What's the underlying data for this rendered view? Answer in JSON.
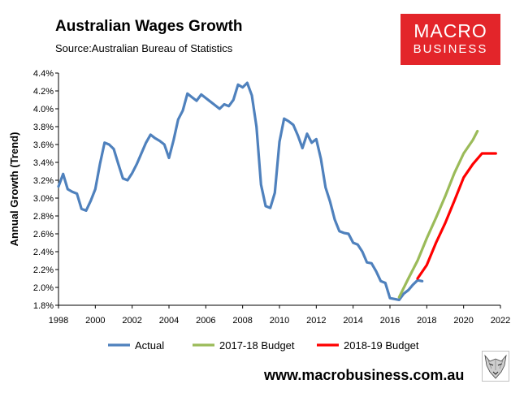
{
  "chart_data": {
    "type": "line",
    "title": "Australian Wages Growth",
    "subtitle": "Source:Australian Bureau of Statistics",
    "xlabel": "",
    "ylabel": "Annual Growth (Trend)",
    "xlim": [
      1998,
      2022
    ],
    "ylim": [
      1.8,
      4.4
    ],
    "x_ticks": [
      1998,
      2000,
      2002,
      2004,
      2006,
      2008,
      2010,
      2012,
      2014,
      2016,
      2018,
      2020,
      2022
    ],
    "y_ticks": [
      "1.8%",
      "2.0%",
      "2.2%",
      "2.4%",
      "2.6%",
      "2.8%",
      "3.0%",
      "3.2%",
      "3.4%",
      "3.6%",
      "3.8%",
      "4.0%",
      "4.2%",
      "4.4%"
    ],
    "y_tick_values": [
      1.8,
      2.0,
      2.2,
      2.4,
      2.6,
      2.8,
      3.0,
      3.2,
      3.4,
      3.6,
      3.8,
      4.0,
      4.2,
      4.4
    ],
    "grid": false,
    "legend_position": "bottom",
    "series": [
      {
        "name": "Actual",
        "color": "#4f81bd",
        "points": [
          [
            1998.0,
            3.13
          ],
          [
            1998.25,
            3.27
          ],
          [
            1998.5,
            3.1
          ],
          [
            1998.75,
            3.07
          ],
          [
            1999.0,
            3.05
          ],
          [
            1999.25,
            2.88
          ],
          [
            1999.5,
            2.86
          ],
          [
            1999.75,
            2.97
          ],
          [
            2000.0,
            3.1
          ],
          [
            2000.25,
            3.38
          ],
          [
            2000.5,
            3.62
          ],
          [
            2000.75,
            3.6
          ],
          [
            2001.0,
            3.55
          ],
          [
            2001.25,
            3.38
          ],
          [
            2001.5,
            3.22
          ],
          [
            2001.75,
            3.2
          ],
          [
            2002.0,
            3.28
          ],
          [
            2002.25,
            3.38
          ],
          [
            2002.5,
            3.5
          ],
          [
            2002.75,
            3.62
          ],
          [
            2003.0,
            3.71
          ],
          [
            2003.25,
            3.67
          ],
          [
            2003.5,
            3.64
          ],
          [
            2003.75,
            3.6
          ],
          [
            2004.0,
            3.45
          ],
          [
            2004.25,
            3.65
          ],
          [
            2004.5,
            3.88
          ],
          [
            2004.75,
            3.98
          ],
          [
            2005.0,
            4.17
          ],
          [
            2005.25,
            4.13
          ],
          [
            2005.5,
            4.09
          ],
          [
            2005.75,
            4.16
          ],
          [
            2006.0,
            4.12
          ],
          [
            2006.25,
            4.08
          ],
          [
            2006.5,
            4.04
          ],
          [
            2006.75,
            4.0
          ],
          [
            2007.0,
            4.05
          ],
          [
            2007.25,
            4.03
          ],
          [
            2007.5,
            4.1
          ],
          [
            2007.75,
            4.27
          ],
          [
            2008.0,
            4.24
          ],
          [
            2008.25,
            4.29
          ],
          [
            2008.5,
            4.15
          ],
          [
            2008.75,
            3.8
          ],
          [
            2009.0,
            3.15
          ],
          [
            2009.25,
            2.91
          ],
          [
            2009.5,
            2.89
          ],
          [
            2009.75,
            3.06
          ],
          [
            2010.0,
            3.63
          ],
          [
            2010.25,
            3.89
          ],
          [
            2010.5,
            3.86
          ],
          [
            2010.75,
            3.82
          ],
          [
            2011.0,
            3.7
          ],
          [
            2011.25,
            3.56
          ],
          [
            2011.5,
            3.72
          ],
          [
            2011.75,
            3.62
          ],
          [
            2012.0,
            3.66
          ],
          [
            2012.25,
            3.44
          ],
          [
            2012.5,
            3.12
          ],
          [
            2012.75,
            2.96
          ],
          [
            2013.0,
            2.76
          ],
          [
            2013.25,
            2.63
          ],
          [
            2013.5,
            2.61
          ],
          [
            2013.75,
            2.6
          ],
          [
            2014.0,
            2.5
          ],
          [
            2014.25,
            2.48
          ],
          [
            2014.5,
            2.4
          ],
          [
            2014.75,
            2.28
          ],
          [
            2015.0,
            2.27
          ],
          [
            2015.25,
            2.18
          ],
          [
            2015.5,
            2.07
          ],
          [
            2015.75,
            2.05
          ],
          [
            2016.0,
            1.88
          ],
          [
            2016.25,
            1.87
          ],
          [
            2016.5,
            1.86
          ],
          [
            2016.75,
            1.93
          ],
          [
            2017.0,
            1.97
          ],
          [
            2017.25,
            2.03
          ],
          [
            2017.5,
            2.08
          ],
          [
            2017.75,
            2.07
          ]
        ]
      },
      {
        "name": "2017-18 Budget",
        "color": "#9bbb59",
        "points": [
          [
            2016.5,
            1.89
          ],
          [
            2017.0,
            2.1
          ],
          [
            2017.5,
            2.3
          ],
          [
            2018.0,
            2.55
          ],
          [
            2018.5,
            2.78
          ],
          [
            2019.0,
            3.02
          ],
          [
            2019.5,
            3.28
          ],
          [
            2020.0,
            3.5
          ],
          [
            2020.5,
            3.65
          ],
          [
            2020.75,
            3.75
          ]
        ]
      },
      {
        "name": "2018-19 Budget",
        "color": "#ff0000",
        "points": [
          [
            2017.5,
            2.1
          ],
          [
            2018.0,
            2.25
          ],
          [
            2018.5,
            2.5
          ],
          [
            2019.0,
            2.72
          ],
          [
            2019.5,
            2.97
          ],
          [
            2020.0,
            3.23
          ],
          [
            2020.5,
            3.38
          ],
          [
            2021.0,
            3.5
          ],
          [
            2021.5,
            3.5
          ],
          [
            2021.75,
            3.5
          ]
        ]
      }
    ]
  },
  "logo": {
    "line1": "MACRO",
    "line2": "BUSINESS"
  },
  "website": "www.macrobusiness.com.au",
  "colors": {
    "accent": "#e3252a",
    "axis": "#000000"
  },
  "icons": {
    "mascot": "wolf-mascot-icon"
  }
}
